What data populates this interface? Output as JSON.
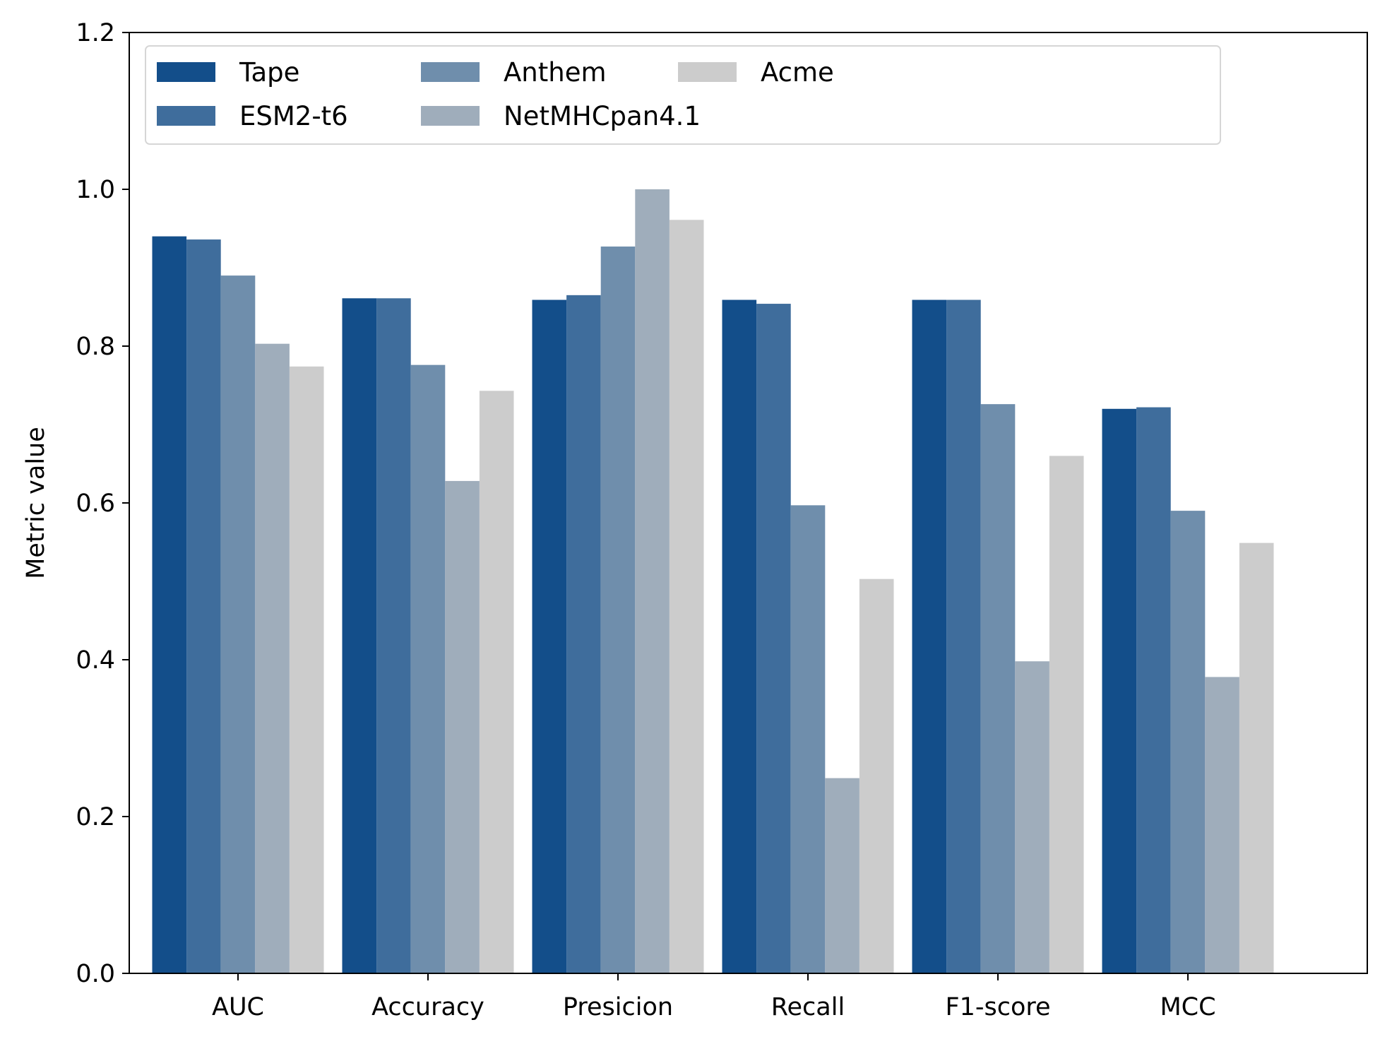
{
  "chart_data": {
    "type": "bar",
    "title": "",
    "xlabel": "",
    "ylabel": "Metric value",
    "ylim": [
      0,
      1.2
    ],
    "yticks": [
      "0.0",
      "0.2",
      "0.4",
      "0.6",
      "0.8",
      "1.0",
      "1.2"
    ],
    "yticks_values": [
      0,
      0.2,
      0.4,
      0.6,
      0.8,
      1.0,
      1.2
    ],
    "grid": false,
    "legend_position": "top-left",
    "categories": [
      "AUC",
      "Accuracy",
      "Presicion",
      "Recall",
      "F1-score",
      "MCC"
    ],
    "series": [
      {
        "name": "Tape",
        "color": "#134e8a",
        "values": [
          0.94,
          0.861,
          0.859,
          0.859,
          0.859,
          0.72
        ]
      },
      {
        "name": "ESM2-t6",
        "color": "#3f6d9c",
        "values": [
          0.936,
          0.861,
          0.865,
          0.854,
          0.859,
          0.722
        ]
      },
      {
        "name": "Anthem",
        "color": "#6f8eac",
        "values": [
          0.89,
          0.776,
          0.927,
          0.597,
          0.726,
          0.59
        ]
      },
      {
        "name": "NetMHCpan4.1",
        "color": "#9fadbb",
        "values": [
          0.803,
          0.628,
          1.0,
          0.249,
          0.398,
          0.378
        ]
      },
      {
        "name": "Acme",
        "color": "#cccccc",
        "values": [
          0.774,
          0.743,
          0.961,
          0.503,
          0.66,
          0.549
        ]
      }
    ]
  }
}
